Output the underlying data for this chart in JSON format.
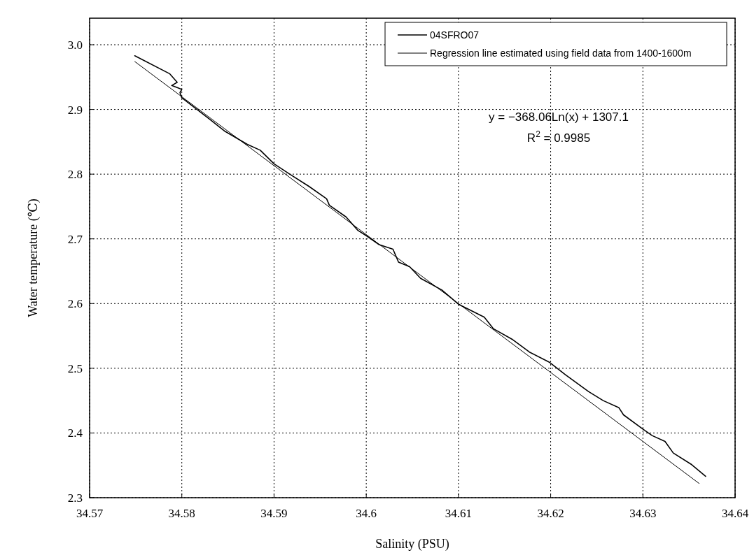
{
  "chart_data": {
    "type": "line",
    "xlabel": "Salinity (PSU)",
    "ylabel": "Water temperature (℃)",
    "xlim": [
      34.57,
      34.64
    ],
    "xticks": [
      34.57,
      34.58,
      34.59,
      34.6,
      34.61,
      34.62,
      34.63,
      34.64
    ],
    "ylim": [
      2.3,
      3.0
    ],
    "yticks": [
      2.3,
      2.4,
      2.5,
      2.6,
      2.7,
      2.8,
      2.9,
      {
        "value": 3.0,
        "label": "3.0"
      }
    ],
    "grid": true,
    "legend": "top right",
    "line_style": "solid",
    "marker": "none",
    "series": [
      {
        "name": "04SFRO07",
        "color": "#000000",
        "x": [
          34.5749,
          34.5787,
          34.5795,
          34.5789,
          34.58,
          34.5798,
          34.58,
          34.583,
          34.5847,
          34.5871,
          34.5885,
          34.59,
          34.5917,
          34.5938,
          34.5957,
          34.596,
          34.5978,
          34.5991,
          34.6001,
          34.6014,
          34.6029,
          34.6035,
          34.6047,
          34.6059,
          34.6082,
          34.61,
          34.6128,
          34.6138,
          34.6158,
          34.6177,
          34.6199,
          34.6216,
          34.6241,
          34.6257,
          34.6274,
          34.6279,
          34.63,
          34.631,
          34.6324,
          34.6333,
          34.6353,
          34.6368
        ],
        "values": [
          2.983,
          2.955,
          2.942,
          2.937,
          2.931,
          2.926,
          2.918,
          2.885,
          2.866,
          2.846,
          2.837,
          2.816,
          2.8,
          2.781,
          2.762,
          2.752,
          2.734,
          2.713,
          2.704,
          2.691,
          2.684,
          2.664,
          2.657,
          2.639,
          2.621,
          2.599,
          2.579,
          2.561,
          2.545,
          2.525,
          2.509,
          2.49,
          2.464,
          2.45,
          2.439,
          2.428,
          2.406,
          2.396,
          2.387,
          2.369,
          2.351,
          2.333
        ]
      },
      {
        "name": "Regression line estimated using field data from 1400-1600m",
        "color": "#000000",
        "x": [
          34.5749,
          34.61,
          34.6361
        ],
        "values": [
          2.974,
          2.6,
          2.322
        ]
      }
    ],
    "annotations": [
      "y = −368.06Ln(x) + 1307.1",
      "R$^{2}$ = 0.9985"
    ]
  }
}
